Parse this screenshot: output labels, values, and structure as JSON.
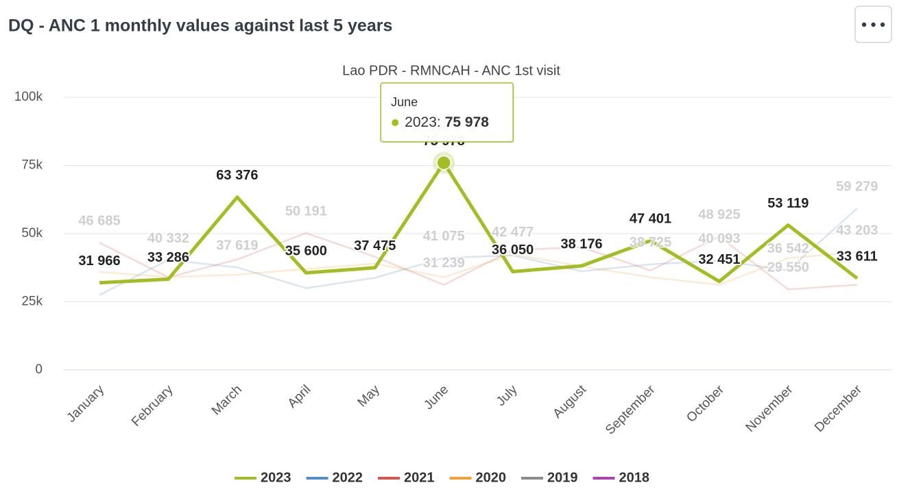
{
  "chart_data": {
    "type": "line",
    "title": "DQ - ANC 1 monthly values against last 5 years",
    "subtitle": "Lao PDR - RMNCAH - ANC 1st visit",
    "categories": [
      "January",
      "February",
      "March",
      "April",
      "May",
      "June",
      "July",
      "August",
      "September",
      "October",
      "November",
      "December"
    ],
    "ylim": [
      0,
      100000
    ],
    "yticks": [
      0,
      {
        "value": 25000,
        "label": "25k"
      },
      {
        "value": 50000,
        "label": "50k"
      },
      {
        "value": 75000,
        "label": "75k"
      },
      {
        "value": 100000,
        "label": "100k"
      }
    ],
    "grid": true,
    "legend": "bottom",
    "highlight_series": "2023",
    "series": [
      {
        "name": "2023",
        "color": "#a3bd24",
        "values": [
          31966,
          33286,
          63376,
          35600,
          37475,
          75978,
          36050,
          38176,
          47401,
          32451,
          53119,
          33611
        ],
        "value_labels": [
          "31 966",
          "33 286",
          "63 376",
          "35 600",
          "37 475",
          "75 978",
          "36 050",
          "38 176",
          "47 401",
          "32 451",
          "53 119",
          "33 611"
        ]
      },
      {
        "name": "2022",
        "color": "#4e8fcc",
        "values": [
          27500,
          40332,
          37619,
          30000,
          33800,
          41075,
          42000,
          36200,
          38725,
          40093,
          36542,
          59279
        ],
        "value_labels": [
          null,
          "40 332",
          "37 619",
          null,
          null,
          "41 075",
          null,
          null,
          "38 725",
          "40 093",
          "36 542",
          "59 279"
        ]
      },
      {
        "name": "2021",
        "color": "#d9534f",
        "values": [
          46685,
          34000,
          40500,
          50191,
          41500,
          31239,
          44000,
          45000,
          36500,
          48925,
          29550,
          31200
        ],
        "value_labels": [
          "46 685",
          null,
          null,
          "50 191",
          null,
          "31 239",
          null,
          null,
          null,
          "48 925",
          "29 550",
          null
        ]
      },
      {
        "name": "2020",
        "color": "#f7a035",
        "values": [
          36000,
          34000,
          35000,
          37000,
          39000,
          34000,
          42477,
          38000,
          34000,
          31200,
          41000,
          43203
        ],
        "value_labels": [
          null,
          null,
          null,
          null,
          null,
          null,
          "42 477",
          null,
          null,
          null,
          null,
          "43 203"
        ]
      },
      {
        "name": "2019",
        "color": "#8c8c8c",
        "values": [
          null,
          null,
          null,
          null,
          null,
          null,
          null,
          null,
          null,
          null,
          null,
          null
        ]
      },
      {
        "name": "2018",
        "color": "#b43fae",
        "values": [
          null,
          null,
          null,
          null,
          null,
          null,
          null,
          null,
          null,
          null,
          null,
          null
        ]
      }
    ],
    "tooltip": {
      "category": "June",
      "label": "2023:",
      "value_label": "75 978"
    }
  }
}
